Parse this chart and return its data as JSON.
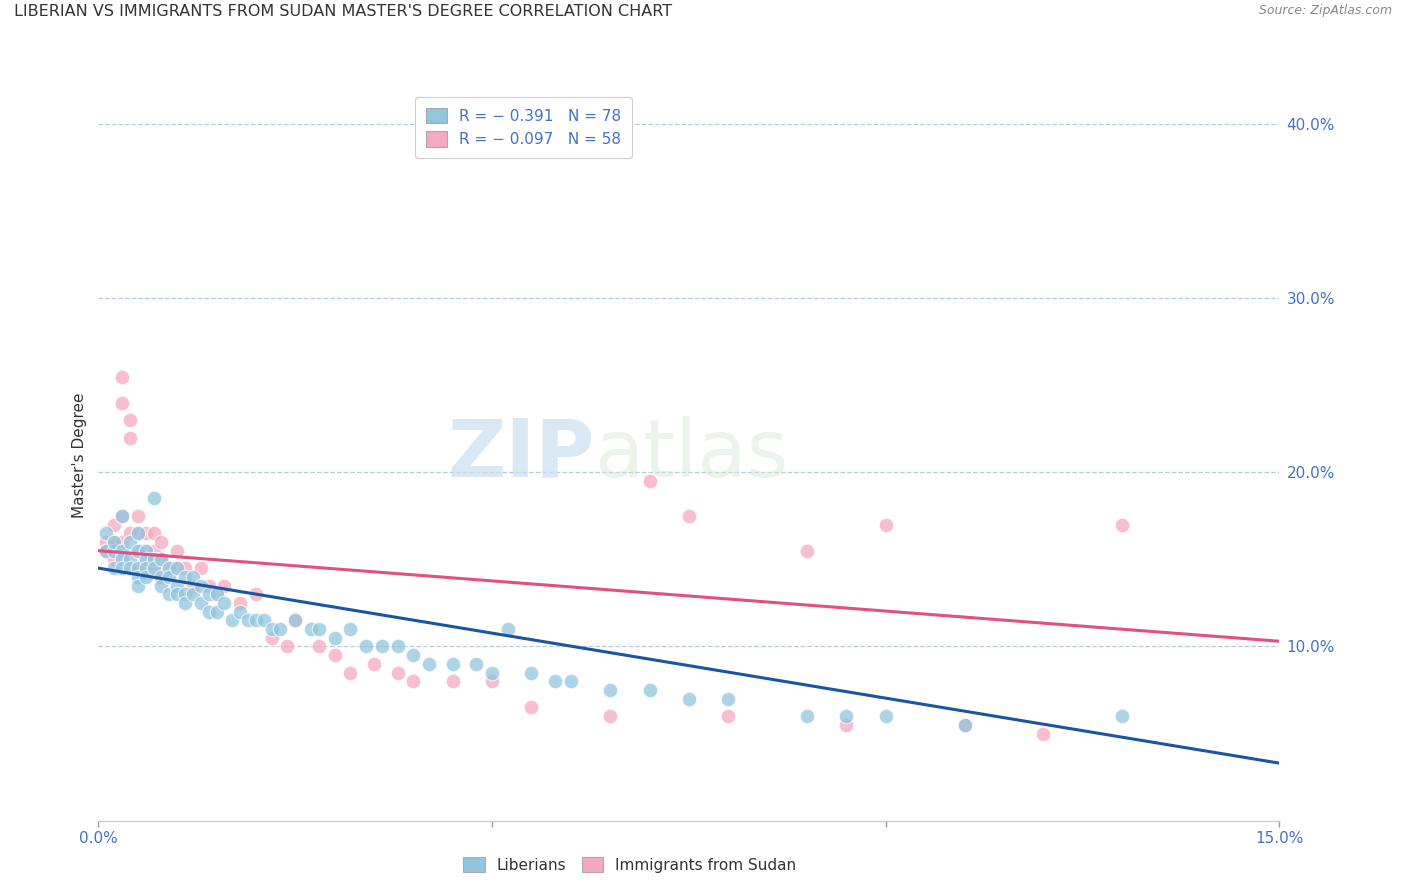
{
  "title": "LIBERIAN VS IMMIGRANTS FROM SUDAN MASTER'S DEGREE CORRELATION CHART",
  "source": "Source: ZipAtlas.com",
  "ylabel": "Master's Degree",
  "xlim": [
    0.0,
    0.15
  ],
  "ylim": [
    0.0,
    0.42
  ],
  "xticks": [
    0.0,
    0.05,
    0.1,
    0.15
  ],
  "xtick_labels": [
    "0.0%",
    "",
    "",
    "15.0%"
  ],
  "ytick_vals": [
    0.1,
    0.2,
    0.3,
    0.4
  ],
  "ytick_labels": [
    "10.0%",
    "20.0%",
    "30.0%",
    "40.0%"
  ],
  "legend_r1": "R = − 0.391   N = 78",
  "legend_r2": "R = − 0.097   N = 58",
  "legend_labels": [
    "Liberians",
    "Immigrants from Sudan"
  ],
  "blue_color": "#92c5de",
  "pink_color": "#f4a9c0",
  "blue_line_color": "#1a56a0",
  "pink_line_color": "#e05080",
  "watermark_zip": "ZIP",
  "watermark_atlas": "atlas",
  "blue_x": [
    0.001,
    0.001,
    0.002,
    0.002,
    0.002,
    0.003,
    0.003,
    0.003,
    0.003,
    0.004,
    0.004,
    0.004,
    0.005,
    0.005,
    0.005,
    0.005,
    0.005,
    0.006,
    0.006,
    0.006,
    0.006,
    0.007,
    0.007,
    0.007,
    0.008,
    0.008,
    0.008,
    0.009,
    0.009,
    0.009,
    0.01,
    0.01,
    0.01,
    0.011,
    0.011,
    0.011,
    0.012,
    0.012,
    0.013,
    0.013,
    0.014,
    0.014,
    0.015,
    0.015,
    0.016,
    0.017,
    0.018,
    0.019,
    0.02,
    0.021,
    0.022,
    0.023,
    0.025,
    0.027,
    0.028,
    0.03,
    0.032,
    0.034,
    0.036,
    0.038,
    0.04,
    0.042,
    0.045,
    0.048,
    0.05,
    0.052,
    0.055,
    0.058,
    0.06,
    0.065,
    0.07,
    0.075,
    0.08,
    0.09,
    0.095,
    0.1,
    0.11,
    0.13
  ],
  "blue_y": [
    0.155,
    0.165,
    0.155,
    0.145,
    0.16,
    0.155,
    0.15,
    0.145,
    0.175,
    0.16,
    0.15,
    0.145,
    0.165,
    0.155,
    0.145,
    0.14,
    0.135,
    0.155,
    0.15,
    0.145,
    0.14,
    0.15,
    0.145,
    0.185,
    0.15,
    0.14,
    0.135,
    0.145,
    0.14,
    0.13,
    0.145,
    0.135,
    0.13,
    0.14,
    0.13,
    0.125,
    0.14,
    0.13,
    0.135,
    0.125,
    0.13,
    0.12,
    0.13,
    0.12,
    0.125,
    0.115,
    0.12,
    0.115,
    0.115,
    0.115,
    0.11,
    0.11,
    0.115,
    0.11,
    0.11,
    0.105,
    0.11,
    0.1,
    0.1,
    0.1,
    0.095,
    0.09,
    0.09,
    0.09,
    0.085,
    0.11,
    0.085,
    0.08,
    0.08,
    0.075,
    0.075,
    0.07,
    0.07,
    0.06,
    0.06,
    0.06,
    0.055,
    0.06
  ],
  "pink_x": [
    0.001,
    0.001,
    0.002,
    0.002,
    0.002,
    0.003,
    0.003,
    0.003,
    0.003,
    0.004,
    0.004,
    0.004,
    0.005,
    0.005,
    0.005,
    0.005,
    0.006,
    0.006,
    0.006,
    0.007,
    0.007,
    0.007,
    0.008,
    0.008,
    0.008,
    0.009,
    0.01,
    0.01,
    0.011,
    0.012,
    0.013,
    0.014,
    0.015,
    0.016,
    0.018,
    0.02,
    0.022,
    0.024,
    0.025,
    0.028,
    0.03,
    0.032,
    0.035,
    0.038,
    0.04,
    0.045,
    0.05,
    0.055,
    0.065,
    0.07,
    0.075,
    0.08,
    0.09,
    0.095,
    0.1,
    0.11,
    0.12,
    0.13
  ],
  "pink_y": [
    0.16,
    0.155,
    0.17,
    0.16,
    0.15,
    0.255,
    0.24,
    0.175,
    0.16,
    0.23,
    0.22,
    0.165,
    0.175,
    0.165,
    0.155,
    0.145,
    0.165,
    0.155,
    0.15,
    0.165,
    0.155,
    0.145,
    0.16,
    0.15,
    0.14,
    0.145,
    0.155,
    0.145,
    0.145,
    0.135,
    0.145,
    0.135,
    0.13,
    0.135,
    0.125,
    0.13,
    0.105,
    0.1,
    0.115,
    0.1,
    0.095,
    0.085,
    0.09,
    0.085,
    0.08,
    0.08,
    0.08,
    0.065,
    0.06,
    0.195,
    0.175,
    0.06,
    0.155,
    0.055,
    0.17,
    0.055,
    0.05,
    0.17
  ],
  "blue_line_x0": 0.0,
  "blue_line_y0": 0.145,
  "blue_line_x1": 0.15,
  "blue_line_y1": 0.033,
  "pink_line_x0": 0.0,
  "pink_line_y0": 0.155,
  "pink_line_x1": 0.15,
  "pink_line_y1": 0.103
}
